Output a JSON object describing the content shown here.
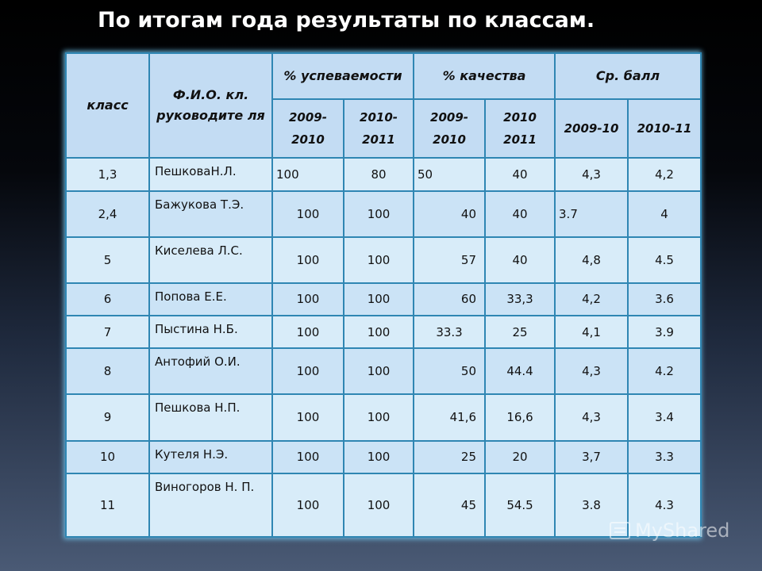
{
  "title": "По итогам года результаты по классам.",
  "table": {
    "headers": {
      "class": "класс",
      "teacher": "Ф.И.О. кл. руководите ля",
      "success": "% успеваемости",
      "quality": "% качества",
      "avg": "Ср. балл",
      "success_years": [
        "2009-2010",
        "2010-2011"
      ],
      "quality_years": [
        "2009-2010",
        "2010 2011"
      ],
      "avg_years": [
        "2009-10",
        "2010-11"
      ]
    },
    "rows": [
      {
        "class": "1,3",
        "teacher": "ПешковаН.Л.",
        "s1": "100",
        "s2": "80",
        "q1": "50",
        "q2": "40",
        "a1": "4,3",
        "a2": "4,2"
      },
      {
        "class": "2,4",
        "teacher": "Бажукова Т.Э.",
        "s1": "100",
        "s2": "100",
        "q1": "40",
        "q2": "40",
        "a1": "3.7",
        "a2": "4"
      },
      {
        "class": "5",
        "teacher": "Киселева Л.С.",
        "s1": "100",
        "s2": "100",
        "q1": "57",
        "q2": "40",
        "a1": "4,8",
        "a2": "4.5"
      },
      {
        "class": "6",
        "teacher": "Попова Е.Е.",
        "s1": "100",
        "s2": "100",
        "q1": "60",
        "q2": "33,3",
        "a1": "4,2",
        "a2": "3.6"
      },
      {
        "class": "7",
        "teacher": "Пыстина Н.Б.",
        "s1": "100",
        "s2": "100",
        "q1": "33.3",
        "q2": "25",
        "a1": "4,1",
        "a2": "3.9"
      },
      {
        "class": "8",
        "teacher": "Антофий О.И.",
        "s1": "100",
        "s2": "100",
        "q1": "50",
        "q2": "44.4",
        "a1": "4,3",
        "a2": "4.2"
      },
      {
        "class": "9",
        "teacher": "Пешкова Н.П.",
        "s1": "100",
        "s2": "100",
        "q1": "41,6",
        "q2": "16,6",
        "a1": "4,3",
        "a2": "3.4"
      },
      {
        "class": "10",
        "teacher": "Кутеля Н.Э.",
        "s1": "100",
        "s2": "100",
        "q1": "25",
        "q2": "20",
        "a1": "3,7",
        "a2": "3.3"
      },
      {
        "class": "11",
        "teacher": "Виногоров Н. П.",
        "s1": "100",
        "s2": "100",
        "q1": "45",
        "q2": "54.5",
        "a1": "3.8",
        "a2": "4.3"
      }
    ]
  },
  "watermark": "MyShared"
}
